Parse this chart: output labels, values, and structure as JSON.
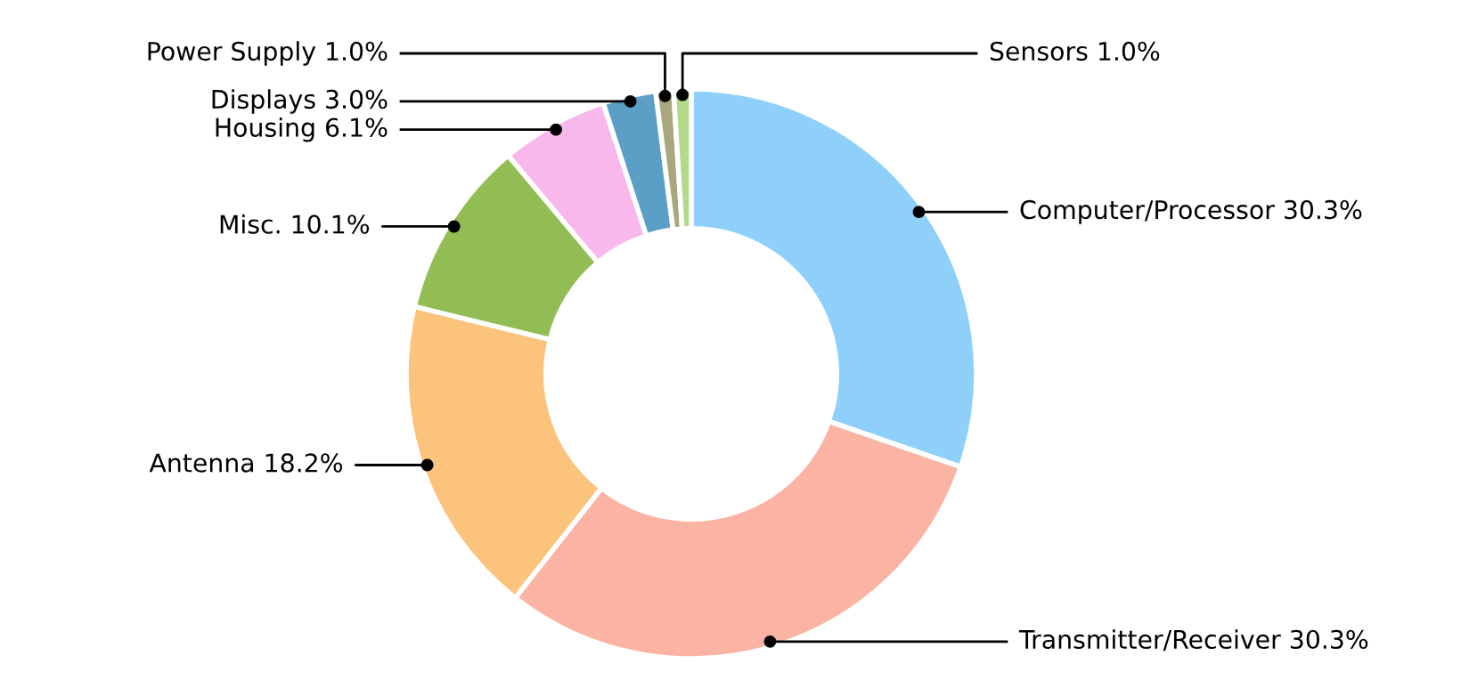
{
  "chart_data": {
    "type": "donut",
    "categories": [
      "Computer/Processor",
      "Transmitter/Receiver",
      "Antenna",
      "Misc.",
      "Housing",
      "Displays",
      "Power Supply",
      "Sensors"
    ],
    "values": [
      30.3,
      30.3,
      18.2,
      10.1,
      6.1,
      3.0,
      1.0,
      1.0
    ],
    "value_labels": [
      "30.3%",
      "30.3%",
      "18.2%",
      "10.1%",
      "6.1%",
      "3.0%",
      "1.0%",
      "1.0%"
    ],
    "colors": [
      "#8fd0fb",
      "#fbb3a3",
      "#fbc37c",
      "#92bd55",
      "#f8b8ec",
      "#5c9fc6",
      "#a9a77d",
      "#b3d98a"
    ],
    "legend": false
  }
}
